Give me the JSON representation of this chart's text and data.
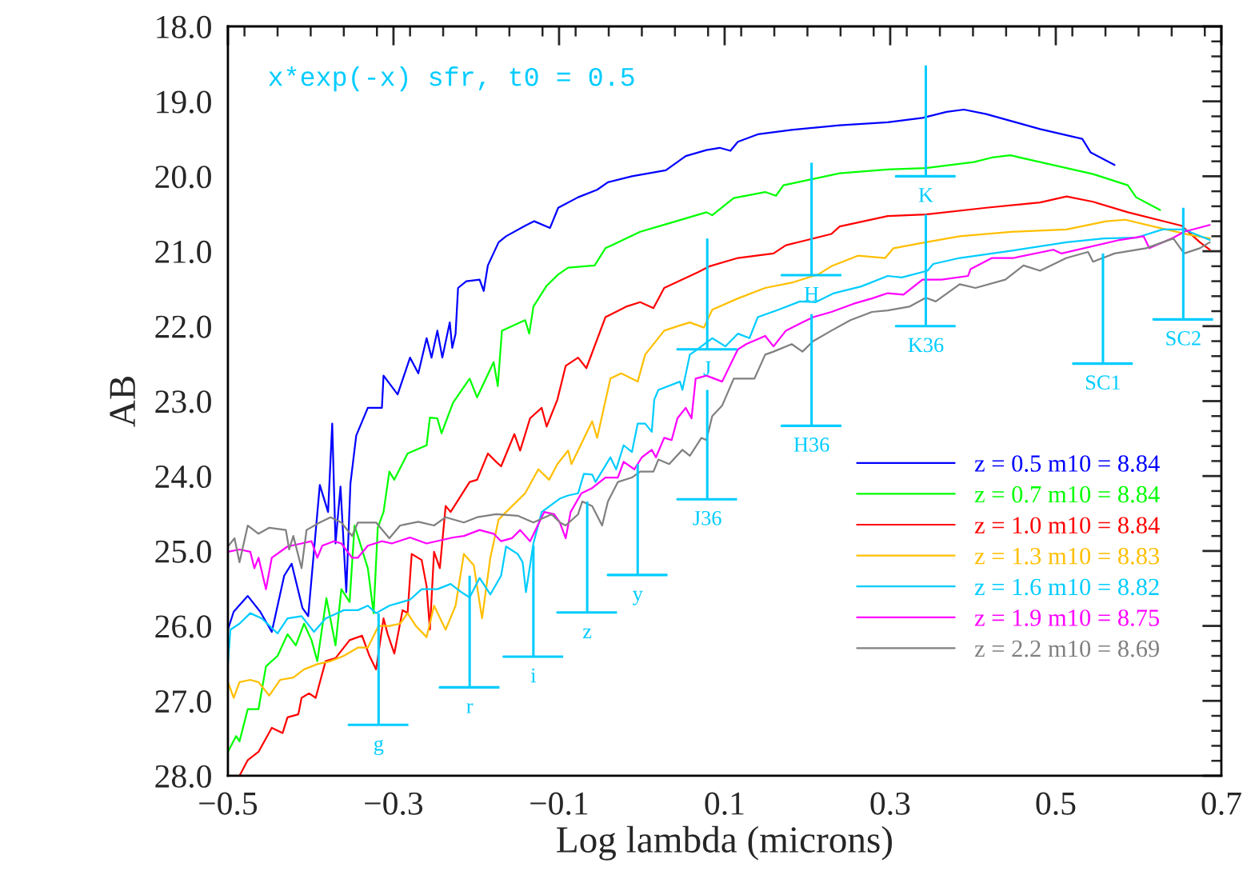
{
  "chart_data": {
    "type": "line",
    "xlabel": "Log lambda (microns)",
    "ylabel": "AB",
    "annotations": [
      "x*exp(-x) sfr, t0 = 0.5",
      {
        "text": "g",
        "x": -0.318,
        "y": 27.32
      },
      {
        "text": "r",
        "x": -0.208,
        "y": 26.82
      },
      {
        "text": "i",
        "x": -0.131,
        "y": 26.41
      },
      {
        "text": "z",
        "x": -0.066,
        "y": 25.82
      },
      {
        "text": "y",
        "x": -0.005,
        "y": 25.32
      },
      {
        "text": "J",
        "x": 0.079,
        "y": 22.31
      },
      {
        "text": "J36",
        "x": 0.079,
        "y": 24.31
      },
      {
        "text": "H",
        "x": 0.205,
        "y": 21.32
      },
      {
        "text": "H36",
        "x": 0.205,
        "y": 23.33
      },
      {
        "text": "K",
        "x": 0.343,
        "y": 20.0
      },
      {
        "text": "K36",
        "x": 0.343,
        "y": 22.0
      },
      {
        "text": "SC1",
        "x": 0.557,
        "y": 22.5
      },
      {
        "text": "SC2",
        "x": 0.654,
        "y": 21.91
      }
    ],
    "xlim": [
      -0.5,
      0.7
    ],
    "ylim": [
      28.0,
      18.0
    ],
    "xticks": [
      {
        "value": -0.5,
        "label": "−0.5"
      },
      {
        "value": -0.3,
        "label": "−0.3"
      },
      {
        "value": -0.1,
        "label": "−0.1"
      },
      0.1,
      0.3,
      0.5,
      0.7
    ],
    "yticks": [
      {
        "value": 18,
        "label": "18.0"
      },
      {
        "value": 19,
        "label": "19.0"
      },
      {
        "value": 20,
        "label": "20.0"
      },
      {
        "value": 21,
        "label": "21.0"
      },
      {
        "value": 22,
        "label": "22.0"
      },
      {
        "value": 23,
        "label": "23.0"
      },
      {
        "value": 24,
        "label": "24.0"
      },
      {
        "value": 25,
        "label": "25.0"
      },
      {
        "value": 26,
        "label": "26.0"
      },
      {
        "value": 27,
        "label": "27.0"
      },
      {
        "value": 28,
        "label": "28.0"
      }
    ],
    "grid": false,
    "legend": "bottom right",
    "marker": "none",
    "line_style": "solid",
    "series": [
      {
        "name": "z = 0.5 m10 = 8.84",
        "color": "#0000ff",
        "x": [
          -0.5,
          -0.493,
          -0.476,
          -0.461,
          -0.447,
          -0.432,
          -0.423,
          -0.41,
          -0.403,
          -0.389,
          -0.379,
          -0.374,
          -0.37,
          -0.364,
          -0.357,
          -0.352,
          -0.345,
          -0.331,
          -0.314,
          -0.312,
          -0.295,
          -0.28,
          -0.27,
          -0.26,
          -0.254,
          -0.247,
          -0.241,
          -0.232,
          -0.229,
          -0.225,
          -0.222,
          -0.212,
          -0.196,
          -0.191,
          -0.186,
          -0.173,
          -0.164,
          -0.141,
          -0.13,
          -0.111,
          -0.101,
          -0.077,
          -0.054,
          -0.041,
          -0.012,
          0.029,
          0.053,
          0.078,
          0.094,
          0.107,
          0.116,
          0.14,
          0.181,
          0.239,
          0.297,
          0.339,
          0.368,
          0.389,
          0.416,
          0.455,
          0.481,
          0.532,
          0.542,
          0.571
        ],
        "values": [
          26.05,
          25.81,
          25.6,
          25.81,
          26.08,
          25.33,
          25.17,
          25.76,
          25.87,
          24.12,
          24.48,
          23.3,
          24.9,
          24.14,
          25.55,
          24.1,
          23.46,
          23.09,
          23.09,
          22.66,
          22.91,
          22.42,
          22.63,
          22.16,
          22.42,
          22.06,
          22.42,
          21.95,
          22.29,
          22.1,
          21.49,
          21.4,
          21.38,
          21.53,
          21.19,
          20.88,
          20.8,
          20.66,
          20.6,
          20.69,
          20.42,
          20.28,
          20.18,
          20.08,
          20.0,
          19.92,
          19.73,
          19.65,
          19.62,
          19.66,
          19.54,
          19.44,
          19.38,
          19.32,
          19.28,
          19.22,
          19.14,
          19.11,
          19.17,
          19.29,
          19.37,
          19.5,
          19.68,
          19.85
        ]
      },
      {
        "name": "z = 0.7 m10 = 8.84",
        "color": "#00ff00",
        "x": [
          -0.5,
          -0.49,
          -0.486,
          -0.476,
          -0.463,
          -0.454,
          -0.44,
          -0.428,
          -0.418,
          -0.408,
          -0.399,
          -0.392,
          -0.381,
          -0.37,
          -0.363,
          -0.353,
          -0.347,
          -0.338,
          -0.331,
          -0.324,
          -0.319,
          -0.312,
          -0.305,
          -0.299,
          -0.283,
          -0.26,
          -0.256,
          -0.247,
          -0.242,
          -0.228,
          -0.208,
          -0.199,
          -0.179,
          -0.174,
          -0.169,
          -0.141,
          -0.136,
          -0.131,
          -0.115,
          -0.101,
          -0.089,
          -0.057,
          -0.044,
          -0.002,
          0.029,
          0.078,
          0.085,
          0.111,
          0.149,
          0.162,
          0.171,
          0.205,
          0.239,
          0.297,
          0.343,
          0.401,
          0.423,
          0.445,
          0.481,
          0.545,
          0.587,
          0.597,
          0.626
        ],
        "values": [
          27.68,
          27.47,
          27.54,
          27.11,
          27.11,
          26.54,
          26.4,
          26.11,
          26.26,
          25.97,
          26.19,
          26.47,
          25.63,
          26.26,
          25.51,
          25.68,
          24.66,
          24.98,
          25.23,
          25.83,
          24.69,
          24.48,
          23.94,
          24.05,
          23.7,
          23.59,
          23.22,
          23.23,
          23.43,
          23.02,
          22.7,
          22.95,
          22.48,
          22.8,
          22.06,
          21.92,
          22.1,
          21.74,
          21.46,
          21.31,
          21.22,
          21.19,
          20.96,
          20.74,
          20.64,
          20.48,
          20.52,
          20.29,
          20.21,
          20.26,
          20.12,
          20.04,
          19.96,
          19.91,
          19.89,
          19.81,
          19.75,
          19.72,
          19.81,
          19.97,
          20.12,
          20.28,
          20.45
        ]
      },
      {
        "name": "z = 1.0 m10 = 8.84",
        "color": "#ff0000",
        "x": [
          -0.486,
          -0.476,
          -0.463,
          -0.447,
          -0.434,
          -0.428,
          -0.415,
          -0.411,
          -0.402,
          -0.394,
          -0.382,
          -0.37,
          -0.353,
          -0.343,
          -0.338,
          -0.329,
          -0.321,
          -0.312,
          -0.307,
          -0.299,
          -0.289,
          -0.283,
          -0.278,
          -0.266,
          -0.26,
          -0.256,
          -0.251,
          -0.244,
          -0.237,
          -0.231,
          -0.208,
          -0.199,
          -0.186,
          -0.176,
          -0.17,
          -0.154,
          -0.147,
          -0.135,
          -0.121,
          -0.115,
          -0.102,
          -0.092,
          -0.077,
          -0.067,
          -0.044,
          -0.019,
          -0.002,
          0.014,
          0.027,
          0.068,
          0.082,
          0.116,
          0.159,
          0.174,
          0.2,
          0.229,
          0.239,
          0.297,
          0.343,
          0.416,
          0.481,
          0.513,
          0.545,
          0.587,
          0.652,
          0.674,
          0.686
        ],
        "values": [
          28.0,
          27.79,
          27.68,
          27.36,
          27.43,
          27.22,
          27.18,
          26.96,
          26.9,
          26.96,
          26.47,
          26.43,
          26.19,
          26.15,
          26.13,
          26.4,
          26.58,
          25.9,
          26.11,
          26.37,
          25.79,
          25.83,
          25.04,
          25.12,
          25.47,
          26.05,
          25.01,
          25.23,
          24.4,
          24.48,
          24.08,
          24.05,
          23.7,
          23.81,
          23.87,
          23.44,
          23.66,
          23.23,
          23.09,
          23.34,
          22.98,
          22.53,
          22.42,
          22.56,
          21.88,
          21.74,
          21.68,
          21.76,
          21.49,
          21.28,
          21.2,
          21.09,
          21.03,
          20.92,
          20.85,
          20.77,
          20.67,
          20.53,
          20.51,
          20.42,
          20.35,
          20.27,
          20.34,
          20.48,
          20.66,
          20.88,
          20.98
        ]
      },
      {
        "name": "z = 1.3 m10 = 8.83",
        "color": "#ffbf00",
        "x": [
          -0.5,
          -0.493,
          -0.486,
          -0.473,
          -0.463,
          -0.45,
          -0.437,
          -0.421,
          -0.408,
          -0.392,
          -0.376,
          -0.36,
          -0.343,
          -0.331,
          -0.318,
          -0.305,
          -0.292,
          -0.283,
          -0.273,
          -0.26,
          -0.251,
          -0.237,
          -0.225,
          -0.215,
          -0.203,
          -0.193,
          -0.183,
          -0.173,
          -0.164,
          -0.141,
          -0.125,
          -0.112,
          -0.102,
          -0.089,
          -0.085,
          -0.06,
          -0.054,
          -0.038,
          -0.025,
          -0.005,
          0.004,
          0.027,
          0.046,
          0.058,
          0.075,
          0.085,
          0.116,
          0.149,
          0.181,
          0.213,
          0.229,
          0.261,
          0.294,
          0.304,
          0.343,
          0.384,
          0.449,
          0.513,
          0.561,
          0.584,
          0.626,
          0.657,
          0.686
        ],
        "values": [
          26.75,
          26.96,
          26.75,
          26.72,
          26.75,
          26.93,
          26.72,
          26.69,
          26.58,
          26.51,
          26.47,
          26.4,
          26.29,
          26.29,
          26.0,
          26.0,
          25.97,
          25.83,
          26.0,
          26.15,
          25.73,
          26.05,
          25.73,
          25.04,
          25.19,
          25.9,
          25.09,
          24.58,
          24.48,
          24.23,
          23.91,
          24.05,
          23.84,
          23.66,
          23.84,
          23.27,
          23.49,
          22.7,
          22.63,
          22.74,
          22.38,
          22.06,
          21.99,
          21.95,
          22.02,
          21.78,
          21.63,
          21.49,
          21.42,
          21.31,
          21.2,
          21.06,
          21.09,
          20.96,
          20.88,
          20.8,
          20.74,
          20.71,
          20.6,
          20.58,
          20.69,
          20.77,
          20.83
        ]
      },
      {
        "name": "z = 1.6 m10 = 8.82",
        "color": "#00ccff",
        "x": [
          -0.5,
          -0.497,
          -0.486,
          -0.473,
          -0.459,
          -0.44,
          -0.428,
          -0.411,
          -0.396,
          -0.382,
          -0.36,
          -0.343,
          -0.331,
          -0.321,
          -0.305,
          -0.28,
          -0.266,
          -0.247,
          -0.231,
          -0.218,
          -0.208,
          -0.196,
          -0.183,
          -0.17,
          -0.164,
          -0.15,
          -0.144,
          -0.14,
          -0.131,
          -0.121,
          -0.099,
          -0.089,
          -0.077,
          -0.07,
          -0.06,
          -0.056,
          -0.038,
          -0.031,
          -0.022,
          -0.012,
          -0.005,
          0.004,
          0.012,
          0.015,
          0.02,
          0.046,
          0.049,
          0.058,
          0.067,
          0.085,
          0.101,
          0.116,
          0.13,
          0.14,
          0.165,
          0.191,
          0.21,
          0.232,
          0.265,
          0.297,
          0.314,
          0.345,
          0.352,
          0.384,
          0.449,
          0.513,
          0.558,
          0.597,
          0.629,
          0.655,
          0.686
        ],
        "values": [
          26.51,
          26.05,
          25.97,
          25.83,
          25.9,
          26.1,
          25.9,
          25.87,
          26.08,
          25.9,
          25.79,
          25.79,
          25.73,
          25.83,
          25.73,
          25.65,
          25.51,
          25.51,
          25.44,
          25.55,
          25.62,
          25.36,
          25.58,
          25.33,
          24.94,
          25.04,
          25.15,
          25.55,
          24.9,
          24.48,
          24.3,
          24.26,
          24.23,
          23.97,
          23.98,
          24.08,
          23.75,
          23.91,
          23.59,
          23.68,
          23.3,
          23.3,
          23.41,
          22.98,
          22.85,
          22.74,
          22.85,
          22.38,
          22.31,
          22.16,
          22.27,
          22.1,
          22.16,
          21.88,
          21.78,
          21.67,
          21.68,
          21.56,
          21.47,
          21.33,
          21.35,
          21.26,
          21.17,
          21.09,
          20.99,
          20.88,
          20.83,
          20.82,
          20.71,
          20.71,
          20.85
        ]
      },
      {
        "name": "z = 1.9 m10 = 8.75",
        "color": "#ff00ff",
        "x": [
          -0.5,
          -0.486,
          -0.473,
          -0.468,
          -0.463,
          -0.454,
          -0.447,
          -0.428,
          -0.411,
          -0.399,
          -0.392,
          -0.386,
          -0.372,
          -0.363,
          -0.35,
          -0.343,
          -0.331,
          -0.314,
          -0.302,
          -0.28,
          -0.26,
          -0.228,
          -0.215,
          -0.196,
          -0.179,
          -0.17,
          -0.157,
          -0.147,
          -0.135,
          -0.118,
          -0.106,
          -0.099,
          -0.092,
          -0.086,
          -0.073,
          -0.06,
          -0.044,
          -0.029,
          -0.022,
          -0.009,
          0.0,
          0.012,
          0.017,
          0.027,
          0.036,
          0.043,
          0.053,
          0.06,
          0.065,
          0.078,
          0.097,
          0.116,
          0.126,
          0.149,
          0.159,
          0.174,
          0.194,
          0.207,
          0.229,
          0.256,
          0.278,
          0.297,
          0.316,
          0.339,
          0.362,
          0.394,
          0.397,
          0.423,
          0.449,
          0.497,
          0.507,
          0.577,
          0.606,
          0.613,
          0.642,
          0.655,
          0.686
        ],
        "values": [
          25.01,
          24.98,
          25.01,
          25.23,
          25.09,
          25.51,
          25.09,
          24.94,
          24.9,
          24.87,
          25.09,
          24.93,
          24.87,
          24.9,
          25.09,
          25.09,
          24.93,
          24.87,
          24.9,
          24.82,
          24.9,
          24.82,
          24.8,
          24.72,
          24.77,
          24.87,
          24.83,
          24.72,
          24.87,
          24.48,
          24.51,
          24.62,
          24.83,
          24.48,
          24.23,
          24.16,
          24.02,
          24.02,
          23.81,
          23.91,
          23.75,
          23.65,
          23.75,
          23.49,
          23.52,
          23.23,
          23.09,
          23.23,
          22.7,
          22.66,
          22.74,
          22.31,
          22.24,
          22.13,
          22.27,
          22.06,
          21.95,
          21.88,
          21.81,
          21.7,
          21.63,
          21.56,
          21.58,
          21.38,
          21.38,
          21.33,
          21.24,
          21.09,
          21.09,
          20.98,
          21.03,
          20.85,
          20.8,
          20.96,
          20.82,
          20.74,
          20.65
        ]
      },
      {
        "name": "z = 2.2 m10 = 8.69",
        "color": "#808080",
        "x": [
          -0.5,
          -0.492,
          -0.486,
          -0.476,
          -0.463,
          -0.45,
          -0.43,
          -0.426,
          -0.421,
          -0.411,
          -0.405,
          -0.389,
          -0.376,
          -0.363,
          -0.35,
          -0.343,
          -0.321,
          -0.305,
          -0.292,
          -0.27,
          -0.251,
          -0.237,
          -0.215,
          -0.199,
          -0.176,
          -0.15,
          -0.131,
          -0.109,
          -0.099,
          -0.092,
          -0.077,
          -0.072,
          -0.06,
          -0.048,
          -0.041,
          -0.029,
          -0.012,
          -0.002,
          0.014,
          0.02,
          0.033,
          0.049,
          0.058,
          0.072,
          0.078,
          0.085,
          0.097,
          0.111,
          0.136,
          0.149,
          0.159,
          0.181,
          0.194,
          0.207,
          0.229,
          0.252,
          0.278,
          0.297,
          0.323,
          0.343,
          0.355,
          0.384,
          0.403,
          0.439,
          0.461,
          0.481,
          0.513,
          0.539,
          0.545,
          0.571,
          0.609,
          0.642,
          0.655,
          0.674,
          0.686
        ],
        "values": [
          24.94,
          24.83,
          25.15,
          24.66,
          24.77,
          24.69,
          24.72,
          24.98,
          24.8,
          25.23,
          24.72,
          24.62,
          24.55,
          24.62,
          24.8,
          24.62,
          24.62,
          24.83,
          24.66,
          24.61,
          24.66,
          24.55,
          24.62,
          24.55,
          24.51,
          24.53,
          24.62,
          24.51,
          24.62,
          24.66,
          24.51,
          24.34,
          24.4,
          24.66,
          24.34,
          24.08,
          24.02,
          23.94,
          23.94,
          23.78,
          23.84,
          23.65,
          23.73,
          23.49,
          23.52,
          23.2,
          23.06,
          22.7,
          22.7,
          22.38,
          22.34,
          22.24,
          22.34,
          22.2,
          22.06,
          21.92,
          21.81,
          21.79,
          21.74,
          21.62,
          21.67,
          21.44,
          21.49,
          21.38,
          21.19,
          21.26,
          21.09,
          21.01,
          21.14,
          21.03,
          20.96,
          20.83,
          21.03,
          20.96,
          20.88
        ]
      },
      {
        "color": "#00ccff",
        "x": [
          -0.318,
          -0.318,
          -0.354,
          -0.282,
          null,
          -0.208,
          -0.208,
          -0.244,
          -0.172,
          null,
          -0.131,
          -0.131,
          -0.167,
          -0.095,
          null,
          -0.066,
          -0.066,
          -0.102,
          -0.03,
          null,
          -0.005,
          -0.005,
          -0.041,
          0.031,
          null,
          0.079,
          0.079,
          0.043,
          0.115,
          null,
          0.079,
          0.079,
          0.043,
          0.115,
          null,
          0.205,
          0.205,
          0.169,
          0.241,
          null,
          0.205,
          0.205,
          0.169,
          0.241,
          null,
          0.343,
          0.343,
          0.307,
          0.379,
          null,
          0.343,
          0.343,
          0.307,
          0.379,
          null,
          0.557,
          0.557,
          0.521,
          0.593,
          null,
          0.654,
          0.654,
          0.618,
          0.69
        ],
        "values": [
          25.83,
          27.32,
          27.32,
          27.32,
          null,
          25.33,
          26.82,
          26.82,
          26.82,
          null,
          24.93,
          26.41,
          26.41,
          26.41,
          null,
          24.34,
          25.82,
          25.82,
          25.82,
          null,
          23.84,
          25.32,
          25.32,
          25.32,
          null,
          20.83,
          22.31,
          22.31,
          22.31,
          null,
          22.85,
          24.31,
          24.31,
          24.31,
          null,
          19.82,
          21.32,
          21.32,
          21.32,
          null,
          21.84,
          23.33,
          23.33,
          23.33,
          null,
          18.52,
          20.0,
          20.0,
          20.0,
          null,
          20.51,
          22.0,
          22.0,
          22.0,
          null,
          21.03,
          22.5,
          22.5,
          22.5,
          null,
          20.42,
          21.91,
          21.91,
          21.91
        ]
      }
    ]
  }
}
